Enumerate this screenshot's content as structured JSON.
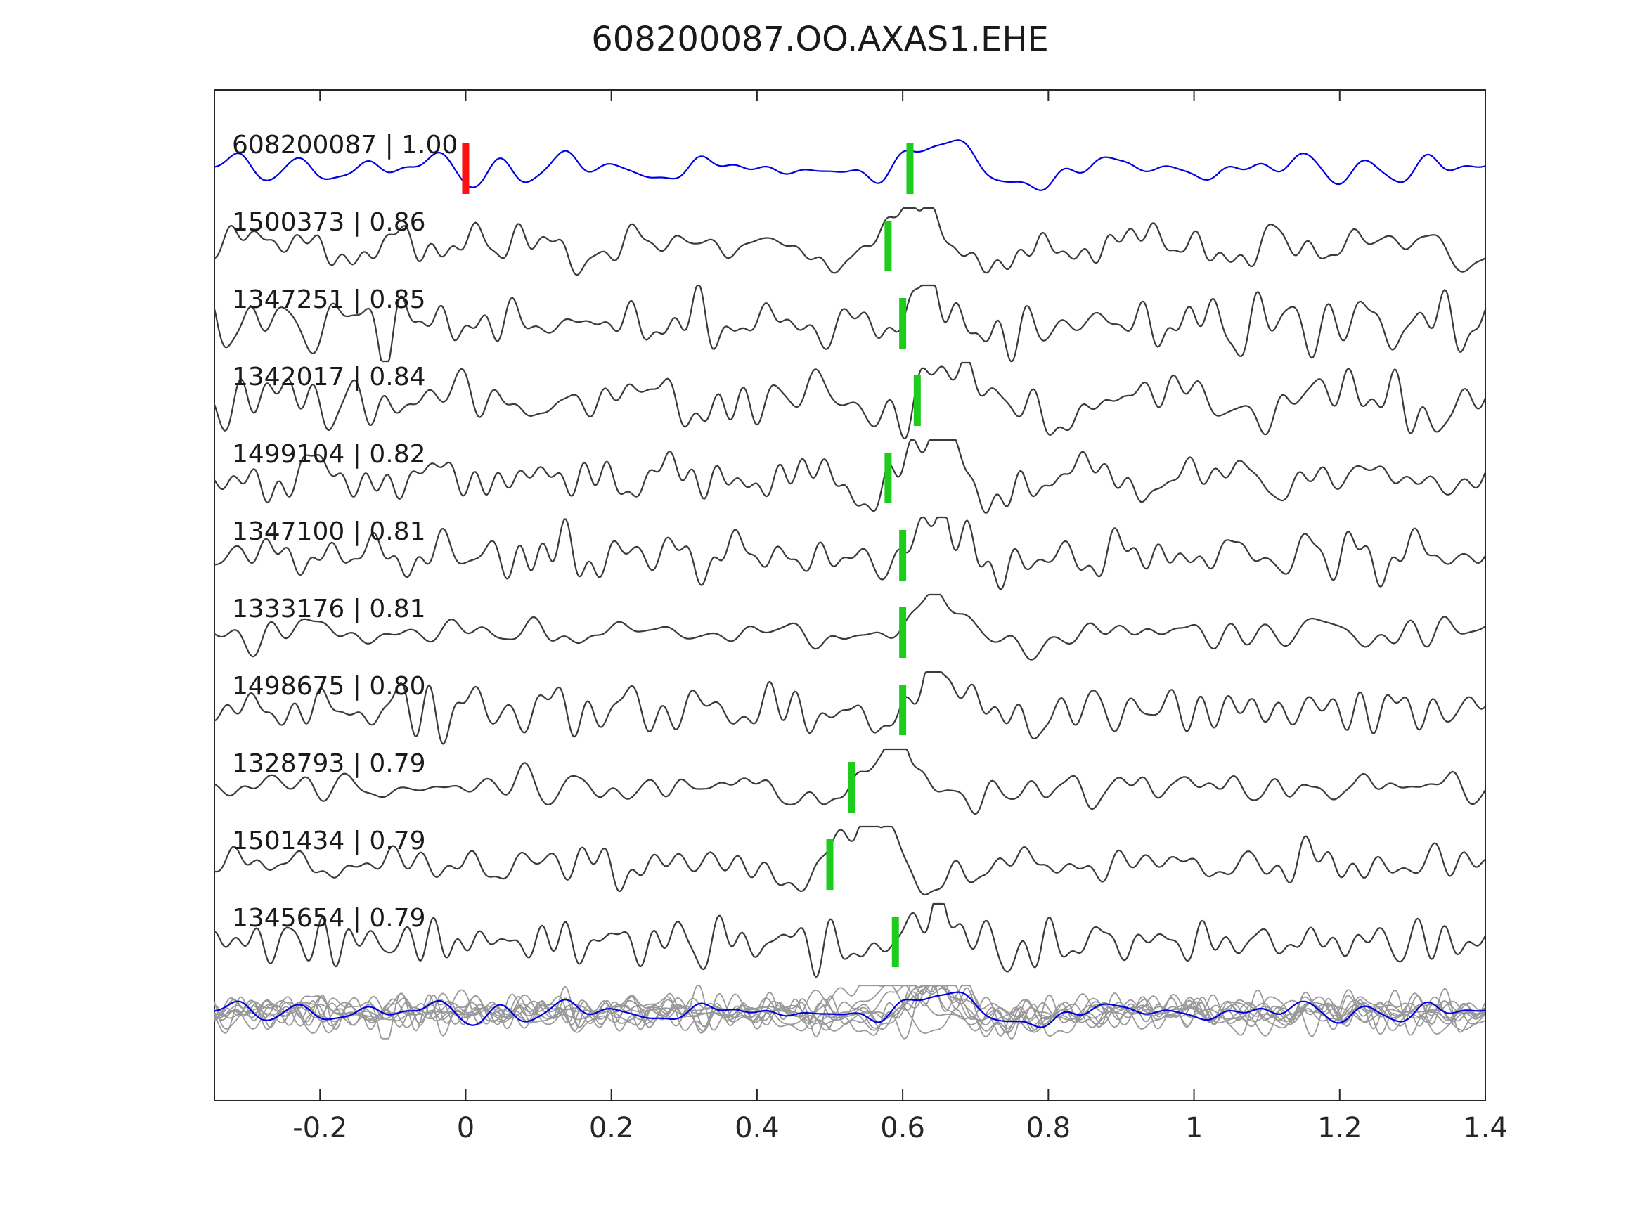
{
  "title": "608200087.OO.AXAS1.EHE",
  "chart_data": {
    "type": "line",
    "title": "608200087.OO.AXAS1.EHE",
    "xlabel": "",
    "ylabel": "",
    "xlim": [
      -0.345,
      1.4
    ],
    "grid": false,
    "legend": "none",
    "x_ticks": [
      "-0.2",
      "0",
      "0.2",
      "0.4",
      "0.6",
      "0.8",
      "1",
      "1.2",
      "1.4"
    ],
    "x_tick_values": [
      -0.2,
      0,
      0.2,
      0.4,
      0.6,
      0.8,
      1.0,
      1.2,
      1.4
    ],
    "colors": {
      "template_trace": "#0000e0",
      "detection_trace": "#3a3a3a",
      "pick_marker": "#1dcc1d",
      "ref_pick_marker": "#ff1111",
      "overlay_gray": "#999999",
      "axis": "#262626"
    },
    "traces": [
      {
        "label": "608200087 | 1.00",
        "id": "608200087",
        "cc": 1.0,
        "pick_time": 0.61,
        "is_template": true,
        "ref_time": 0.0
      },
      {
        "label": "1500373 | 0.86",
        "id": "1500373",
        "cc": 0.86,
        "pick_time": 0.58,
        "is_template": false
      },
      {
        "label": "1347251 | 0.85",
        "id": "1347251",
        "cc": 0.85,
        "pick_time": 0.6,
        "is_template": false
      },
      {
        "label": "1342017 | 0.84",
        "id": "1342017",
        "cc": 0.84,
        "pick_time": 0.62,
        "is_template": false
      },
      {
        "label": "1499104 | 0.82",
        "id": "1499104",
        "cc": 0.82,
        "pick_time": 0.58,
        "is_template": false
      },
      {
        "label": "1347100 | 0.81",
        "id": "1347100",
        "cc": 0.81,
        "pick_time": 0.6,
        "is_template": false
      },
      {
        "label": "1333176 | 0.81",
        "id": "1333176",
        "cc": 0.81,
        "pick_time": 0.6,
        "is_template": false
      },
      {
        "label": "1498675 | 0.80",
        "id": "1498675",
        "cc": 0.8,
        "pick_time": 0.6,
        "is_template": false
      },
      {
        "label": "1328793 | 0.79",
        "id": "1328793",
        "cc": 0.79,
        "pick_time": 0.53,
        "is_template": false
      },
      {
        "label": "1501434 | 0.79",
        "id": "1501434",
        "cc": 0.79,
        "pick_time": 0.5,
        "is_template": false
      },
      {
        "label": "1345654 | 0.79",
        "id": "1345654",
        "cc": 0.79,
        "pick_time": 0.59,
        "is_template": false
      }
    ],
    "overlay_row": {
      "description": "all detection traces overlaid in gray with the blue template trace on top",
      "gray_trace_count": 10,
      "blue_trace_count": 1
    }
  }
}
